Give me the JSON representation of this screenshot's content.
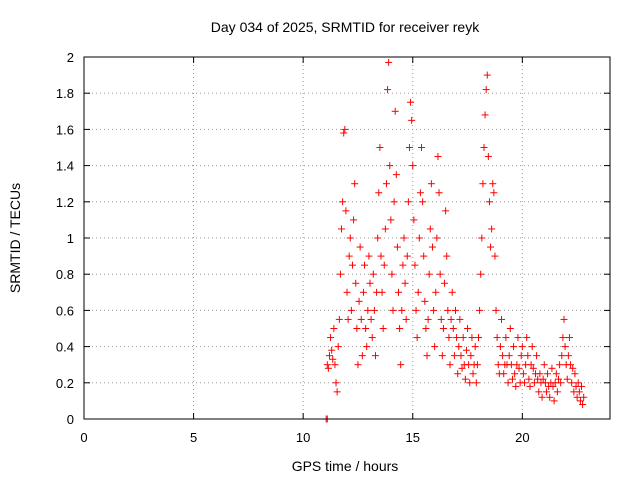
{
  "chart_data": {
    "type": "scatter",
    "title": "Day 034 of 2025, SRMTID for receiver reyk",
    "xlabel": "GPS time / hours",
    "ylabel": "SRMTID / TECUs",
    "xlim": [
      0,
      24
    ],
    "ylim": [
      0,
      2
    ],
    "xticks": [
      "0",
      "5",
      "10",
      "15",
      "20"
    ],
    "yticks": [
      "0",
      "0.2",
      "0.4",
      "0.6",
      "0.8",
      "1",
      "1.2",
      "1.4",
      "1.6",
      "1.8",
      "2"
    ],
    "grid": true,
    "marker": "plus",
    "color": "#ff0000",
    "series": [
      {
        "name": "SRMTID",
        "points": [
          [
            11.05,
            0.0
          ],
          [
            11.1,
            0.0
          ],
          [
            11.1,
            0.3
          ],
          [
            11.15,
            0.28
          ],
          [
            11.2,
            0.35
          ],
          [
            11.25,
            0.45
          ],
          [
            11.3,
            0.38
          ],
          [
            11.35,
            0.33
          ],
          [
            11.4,
            0.5
          ],
          [
            11.45,
            0.3
          ],
          [
            11.5,
            0.2
          ],
          [
            11.55,
            0.15
          ],
          [
            11.6,
            0.4
          ],
          [
            11.65,
            0.55
          ],
          [
            11.7,
            0.8
          ],
          [
            11.75,
            1.05
          ],
          [
            11.8,
            1.2
          ],
          [
            11.85,
            1.58
          ],
          [
            11.9,
            1.6
          ],
          [
            11.95,
            1.15
          ],
          [
            12.0,
            0.7
          ],
          [
            12.05,
            0.55
          ],
          [
            12.1,
            0.9
          ],
          [
            12.15,
            1.0
          ],
          [
            12.2,
            0.6
          ],
          [
            12.25,
            0.85
          ],
          [
            12.3,
            1.1
          ],
          [
            12.35,
            1.3
          ],
          [
            12.4,
            0.75
          ],
          [
            12.45,
            0.5
          ],
          [
            12.5,
            0.3
          ],
          [
            12.55,
            0.65
          ],
          [
            12.6,
            0.95
          ],
          [
            12.65,
            0.55
          ],
          [
            12.7,
            0.35
          ],
          [
            12.75,
            0.7
          ],
          [
            12.8,
            0.85
          ],
          [
            12.85,
            0.5
          ],
          [
            12.9,
            0.4
          ],
          [
            12.95,
            0.6
          ],
          [
            13.0,
            0.9
          ],
          [
            13.05,
            0.75
          ],
          [
            13.1,
            0.55
          ],
          [
            13.15,
            0.45
          ],
          [
            13.2,
            0.8
          ],
          [
            13.25,
            0.6
          ],
          [
            13.3,
            0.35
          ],
          [
            13.35,
            0.7
          ],
          [
            13.4,
            1.0
          ],
          [
            13.45,
            1.25
          ],
          [
            13.5,
            1.5
          ],
          [
            13.55,
            0.9
          ],
          [
            13.6,
            0.7
          ],
          [
            13.65,
            0.5
          ],
          [
            13.7,
            0.85
          ],
          [
            13.75,
            1.05
          ],
          [
            13.8,
            1.3
          ],
          [
            13.85,
            1.82
          ],
          [
            13.9,
            1.97
          ],
          [
            13.95,
            1.4
          ],
          [
            14.0,
            1.1
          ],
          [
            14.05,
            0.8
          ],
          [
            14.1,
            0.6
          ],
          [
            14.15,
            1.2
          ],
          [
            14.2,
            1.7
          ],
          [
            14.25,
            1.35
          ],
          [
            14.3,
            0.95
          ],
          [
            14.35,
            0.7
          ],
          [
            14.4,
            0.5
          ],
          [
            14.45,
            0.3
          ],
          [
            14.5,
            0.6
          ],
          [
            14.55,
            0.85
          ],
          [
            14.6,
            1.0
          ],
          [
            14.65,
            0.75
          ],
          [
            14.7,
            0.55
          ],
          [
            14.75,
            0.9
          ],
          [
            14.8,
            1.2
          ],
          [
            14.85,
            1.5
          ],
          [
            14.9,
            1.75
          ],
          [
            14.95,
            1.65
          ],
          [
            15.0,
            1.4
          ],
          [
            15.05,
            1.1
          ],
          [
            15.1,
            0.85
          ],
          [
            15.15,
            0.6
          ],
          [
            15.2,
            0.45
          ],
          [
            15.25,
            0.7
          ],
          [
            15.3,
            1.0
          ],
          [
            15.35,
            1.25
          ],
          [
            15.4,
            1.5
          ],
          [
            15.45,
            1.2
          ],
          [
            15.5,
            0.9
          ],
          [
            15.55,
            0.65
          ],
          [
            15.6,
            0.5
          ],
          [
            15.65,
            0.35
          ],
          [
            15.7,
            0.55
          ],
          [
            15.75,
            0.8
          ],
          [
            15.8,
            1.05
          ],
          [
            15.85,
            1.3
          ],
          [
            15.9,
            0.95
          ],
          [
            15.95,
            0.6
          ],
          [
            16.0,
            0.4
          ],
          [
            16.05,
            0.7
          ],
          [
            16.1,
            1.0
          ],
          [
            16.15,
            1.45
          ],
          [
            16.2,
            1.25
          ],
          [
            16.25,
            0.8
          ],
          [
            16.3,
            0.55
          ],
          [
            16.35,
            0.35
          ],
          [
            16.4,
            0.5
          ],
          [
            16.45,
            0.75
          ],
          [
            16.5,
            1.15
          ],
          [
            16.55,
            0.9
          ],
          [
            16.6,
            0.6
          ],
          [
            16.65,
            0.45
          ],
          [
            16.7,
            0.3
          ],
          [
            16.75,
            0.55
          ],
          [
            16.8,
            0.7
          ],
          [
            16.85,
            0.5
          ],
          [
            16.9,
            0.35
          ],
          [
            16.95,
            0.6
          ],
          [
            17.0,
            0.45
          ],
          [
            17.05,
            0.25
          ],
          [
            17.1,
            0.4
          ],
          [
            17.15,
            0.55
          ],
          [
            17.2,
            0.35
          ],
          [
            17.25,
            0.28
          ],
          [
            17.3,
            0.45
          ],
          [
            17.35,
            0.3
          ],
          [
            17.4,
            0.22
          ],
          [
            17.45,
            0.38
          ],
          [
            17.5,
            0.5
          ],
          [
            17.55,
            0.3
          ],
          [
            17.6,
            0.2
          ],
          [
            17.65,
            0.35
          ],
          [
            17.7,
            0.45
          ],
          [
            17.75,
            0.25
          ],
          [
            17.8,
            0.3
          ],
          [
            17.85,
            0.4
          ],
          [
            17.9,
            0.2
          ],
          [
            17.95,
            0.3
          ],
          [
            18.0,
            0.45
          ],
          [
            18.05,
            0.6
          ],
          [
            18.1,
            0.8
          ],
          [
            18.15,
            1.0
          ],
          [
            18.2,
            1.3
          ],
          [
            18.25,
            1.5
          ],
          [
            18.3,
            1.68
          ],
          [
            18.35,
            1.82
          ],
          [
            18.4,
            1.9
          ],
          [
            18.45,
            1.45
          ],
          [
            18.5,
            1.2
          ],
          [
            18.55,
            0.95
          ],
          [
            18.6,
            1.05
          ],
          [
            18.65,
            1.3
          ],
          [
            18.7,
            1.25
          ],
          [
            18.75,
            0.9
          ],
          [
            18.8,
            0.6
          ],
          [
            18.85,
            0.45
          ],
          [
            18.9,
            0.3
          ],
          [
            18.95,
            0.25
          ],
          [
            19.0,
            0.4
          ],
          [
            19.05,
            0.55
          ],
          [
            19.1,
            0.35
          ],
          [
            19.15,
            0.25
          ],
          [
            19.2,
            0.3
          ],
          [
            19.25,
            0.45
          ],
          [
            19.3,
            0.3
          ],
          [
            19.35,
            0.2
          ],
          [
            19.4,
            0.35
          ],
          [
            19.45,
            0.5
          ],
          [
            19.5,
            0.3
          ],
          [
            19.55,
            0.22
          ],
          [
            19.6,
            0.4
          ],
          [
            19.65,
            0.25
          ],
          [
            19.7,
            0.18
          ],
          [
            19.75,
            0.3
          ],
          [
            19.8,
            0.45
          ],
          [
            19.85,
            0.28
          ],
          [
            19.9,
            0.2
          ],
          [
            19.95,
            0.35
          ],
          [
            20.0,
            0.4
          ],
          [
            20.05,
            0.25
          ],
          [
            20.1,
            0.2
          ],
          [
            20.15,
            0.3
          ],
          [
            20.2,
            0.45
          ],
          [
            20.25,
            0.35
          ],
          [
            20.3,
            0.22
          ],
          [
            20.35,
            0.18
          ],
          [
            20.4,
            0.3
          ],
          [
            20.45,
            0.4
          ],
          [
            20.5,
            0.28
          ],
          [
            20.55,
            0.2
          ],
          [
            20.6,
            0.25
          ],
          [
            20.65,
            0.35
          ],
          [
            20.7,
            0.22
          ],
          [
            20.75,
            0.15
          ],
          [
            20.8,
            0.25
          ],
          [
            20.85,
            0.2
          ],
          [
            20.9,
            0.12
          ],
          [
            20.95,
            0.22
          ],
          [
            21.0,
            0.3
          ],
          [
            21.05,
            0.2
          ],
          [
            21.1,
            0.15
          ],
          [
            21.15,
            0.25
          ],
          [
            21.2,
            0.18
          ],
          [
            21.25,
            0.12
          ],
          [
            21.3,
            0.2
          ],
          [
            21.35,
            0.28
          ],
          [
            21.4,
            0.18
          ],
          [
            21.45,
            0.1
          ],
          [
            21.5,
            0.2
          ],
          [
            21.55,
            0.25
          ],
          [
            21.6,
            0.15
          ],
          [
            21.65,
            0.22
          ],
          [
            21.7,
            0.3
          ],
          [
            21.75,
            0.2
          ],
          [
            21.8,
            0.35
          ],
          [
            21.85,
            0.45
          ],
          [
            21.9,
            0.55
          ],
          [
            21.95,
            0.4
          ],
          [
            22.0,
            0.3
          ],
          [
            22.05,
            0.22
          ],
          [
            22.1,
            0.35
          ],
          [
            22.15,
            0.45
          ],
          [
            22.2,
            0.3
          ],
          [
            22.25,
            0.2
          ],
          [
            22.3,
            0.28
          ],
          [
            22.35,
            0.15
          ],
          [
            22.4,
            0.25
          ],
          [
            22.45,
            0.18
          ],
          [
            22.5,
            0.12
          ],
          [
            22.55,
            0.2
          ],
          [
            22.6,
            0.15
          ],
          [
            22.65,
            0.1
          ],
          [
            22.7,
            0.18
          ],
          [
            22.75,
            0.08
          ],
          [
            22.8,
            0.12
          ]
        ]
      }
    ]
  }
}
